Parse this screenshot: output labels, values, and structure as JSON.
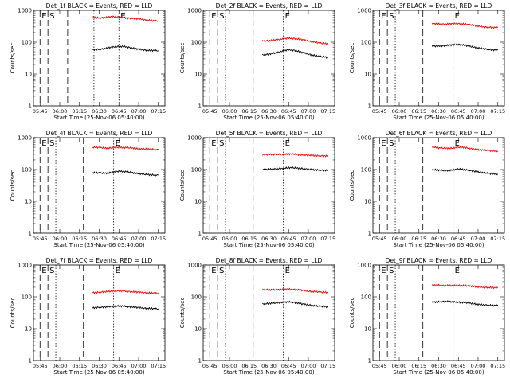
{
  "chart_data": [
    {
      "type": "line",
      "title": "Det_1f BLACK = Events, RED = LLD",
      "xlabel": "Start Time (25-Nov-06 05:40:00)",
      "ylabel": "Counts/sec",
      "y_scale": "log",
      "ylim": [
        1,
        1000
      ],
      "x_ticks": [
        "05:45",
        "06:00",
        "06:15",
        "06:30",
        "06:45",
        "07:00",
        "07:15"
      ],
      "y_ticks": [
        "1",
        "10",
        "100",
        "1000"
      ],
      "markers": [
        {
          "label": "E",
          "style": "dashed"
        },
        {
          "label": "S",
          "style": "dashed"
        },
        {
          "label": "",
          "style": "dashed"
        },
        {
          "label": "",
          "style": "dotted"
        },
        {
          "label": "E",
          "style": "dotted"
        }
      ],
      "series": [
        {
          "name": "RED = LLD",
          "color": "#ff0000",
          "x": [
            "06:25",
            "06:30",
            "06:35",
            "06:40",
            "06:45",
            "06:50",
            "06:55",
            "07:00",
            "07:05",
            "07:10",
            "07:15"
          ],
          "values": [
            620,
            580,
            600,
            640,
            620,
            580,
            560,
            540,
            500,
            480,
            460
          ]
        },
        {
          "name": "BLACK = Events",
          "color": "#000000",
          "x": [
            "06:25",
            "06:30",
            "06:35",
            "06:40",
            "06:45",
            "06:50",
            "06:55",
            "07:00",
            "07:05",
            "07:10",
            "07:15"
          ],
          "values": [
            58,
            60,
            64,
            70,
            74,
            72,
            66,
            60,
            56,
            55,
            54
          ]
        }
      ]
    },
    {
      "type": "line",
      "title": "Det_2f BLACK = Events, RED = LLD",
      "xlabel": "Start Time (25-Nov-06 05:40:00)",
      "ylabel": "Counts/sec",
      "y_scale": "log",
      "ylim": [
        1,
        1000
      ],
      "x_ticks": [
        "05:45",
        "06:00",
        "06:15",
        "06:30",
        "06:45",
        "07:00",
        "07:15"
      ],
      "y_ticks": [
        "1",
        "10",
        "100",
        "1000"
      ],
      "markers": [
        {
          "label": "E",
          "style": "dashed"
        },
        {
          "label": "S",
          "style": "dashed"
        },
        {
          "label": "",
          "style": "dotted"
        },
        {
          "label": "",
          "style": "dashed"
        },
        {
          "label": "E",
          "style": "dotted"
        }
      ],
      "series": [
        {
          "name": "RED = LLD",
          "color": "#ff0000",
          "x": [
            "06:25",
            "06:30",
            "06:35",
            "06:40",
            "06:45",
            "06:50",
            "06:55",
            "07:00",
            "07:05",
            "07:10",
            "07:15"
          ],
          "values": [
            110,
            112,
            118,
            125,
            135,
            130,
            120,
            110,
            100,
            92,
            90
          ]
        },
        {
          "name": "BLACK = Events",
          "color": "#000000",
          "x": [
            "06:25",
            "06:30",
            "06:35",
            "06:40",
            "06:45",
            "06:50",
            "06:55",
            "07:00",
            "07:05",
            "07:10",
            "07:15"
          ],
          "values": [
            40,
            42,
            46,
            52,
            58,
            55,
            48,
            42,
            38,
            35,
            33
          ]
        }
      ]
    },
    {
      "type": "line",
      "title": "Det_3f BLACK = Events, RED = LLD",
      "xlabel": "Start Time (25-Nov-06 05:40:00)",
      "ylabel": "Counts/sec",
      "y_scale": "log",
      "ylim": [
        1,
        1000
      ],
      "x_ticks": [
        "05:45",
        "06:00",
        "06:15",
        "06:30",
        "06:45",
        "07:00",
        "07:15"
      ],
      "y_ticks": [
        "1",
        "10",
        "100",
        "1000"
      ],
      "markers": [
        {
          "label": "E",
          "style": "dashed"
        },
        {
          "label": "S",
          "style": "dashed"
        },
        {
          "label": "",
          "style": "dotted"
        },
        {
          "label": "",
          "style": "dashed"
        },
        {
          "label": "E",
          "style": "dotted"
        }
      ],
      "series": [
        {
          "name": "RED = LLD",
          "color": "#ff0000",
          "x": [
            "06:25",
            "06:30",
            "06:35",
            "06:40",
            "06:45",
            "06:50",
            "06:55",
            "07:00",
            "07:05",
            "07:10",
            "07:15"
          ],
          "values": [
            380,
            375,
            370,
            380,
            385,
            370,
            345,
            320,
            300,
            290,
            285
          ]
        },
        {
          "name": "BLACK = Events",
          "color": "#000000",
          "x": [
            "06:25",
            "06:30",
            "06:35",
            "06:40",
            "06:45",
            "06:50",
            "06:55",
            "07:00",
            "07:05",
            "07:10",
            "07:15"
          ],
          "values": [
            75,
            76,
            78,
            82,
            86,
            80,
            72,
            66,
            62,
            58,
            56
          ]
        }
      ]
    },
    {
      "type": "line",
      "title": "Det_4f BLACK = Events, RED = LLD",
      "xlabel": "Start Time (25-Nov-06 05:40:00)",
      "ylabel": "Counts/sec",
      "y_scale": "log",
      "ylim": [
        1,
        1000
      ],
      "x_ticks": [
        "05:45",
        "06:00",
        "06:15",
        "06:30",
        "06:45",
        "07:00",
        "07:15"
      ],
      "y_ticks": [
        "1",
        "10",
        "100",
        "1000"
      ],
      "markers": [
        {
          "label": "E",
          "style": "dashed"
        },
        {
          "label": "S",
          "style": "dashed"
        },
        {
          "label": "",
          "style": "dotted"
        },
        {
          "label": "",
          "style": "dashed"
        },
        {
          "label": "E",
          "style": "dotted"
        }
      ],
      "series": [
        {
          "name": "RED = LLD",
          "color": "#ff0000",
          "x": [
            "06:25",
            "06:30",
            "06:35",
            "06:40",
            "06:45",
            "06:50",
            "06:55",
            "07:00",
            "07:05",
            "07:10",
            "07:15"
          ],
          "values": [
            500,
            490,
            470,
            480,
            500,
            490,
            470,
            450,
            440,
            430,
            420
          ]
        },
        {
          "name": "BLACK = Events",
          "color": "#000000",
          "x": [
            "06:25",
            "06:30",
            "06:35",
            "06:40",
            "06:45",
            "06:50",
            "06:55",
            "07:00",
            "07:05",
            "07:10",
            "07:15"
          ],
          "values": [
            80,
            78,
            76,
            82,
            88,
            86,
            80,
            74,
            70,
            68,
            66
          ]
        }
      ]
    },
    {
      "type": "line",
      "title": "Det_5f BLACK = Events, RED = LLD",
      "xlabel": "Start Time (25-Nov-06 05:40:00)",
      "ylabel": "Counts/sec",
      "y_scale": "log",
      "ylim": [
        1,
        1000
      ],
      "x_ticks": [
        "05:45",
        "06:00",
        "06:15",
        "06:30",
        "06:45",
        "07:00",
        "07:15"
      ],
      "y_ticks": [
        "1",
        "10",
        "100",
        "1000"
      ],
      "markers": [
        {
          "label": "E",
          "style": "dashed"
        },
        {
          "label": "S",
          "style": "dashed"
        },
        {
          "label": "",
          "style": "dotted"
        },
        {
          "label": "",
          "style": "dashed"
        },
        {
          "label": "E",
          "style": "dotted"
        }
      ],
      "series": [
        {
          "name": "RED = LLD",
          "color": "#ff0000",
          "x": [
            "06:25",
            "06:30",
            "06:35",
            "06:40",
            "06:45",
            "06:50",
            "06:55",
            "07:00",
            "07:05",
            "07:10",
            "07:15"
          ],
          "values": [
            290,
            295,
            300,
            300,
            305,
            300,
            290,
            280,
            275,
            270,
            265
          ]
        },
        {
          "name": "BLACK = Events",
          "color": "#000000",
          "x": [
            "06:25",
            "06:30",
            "06:35",
            "06:40",
            "06:45",
            "06:50",
            "06:55",
            "07:00",
            "07:05",
            "07:10",
            "07:15"
          ],
          "values": [
            100,
            102,
            105,
            108,
            115,
            112,
            108,
            102,
            98,
            96,
            94
          ]
        }
      ]
    },
    {
      "type": "line",
      "title": "Det_6f BLACK = Events, RED = LLD",
      "xlabel": "Start Time (25-Nov-06 05:40:00)",
      "ylabel": "Counts/sec",
      "y_scale": "log",
      "ylim": [
        1,
        1000
      ],
      "x_ticks": [
        "05:45",
        "06:00",
        "06:15",
        "06:30",
        "06:45",
        "07:00",
        "07:15"
      ],
      "y_ticks": [
        "1",
        "10",
        "100",
        "1000"
      ],
      "markers": [
        {
          "label": "E",
          "style": "dashed"
        },
        {
          "label": "S",
          "style": "dashed"
        },
        {
          "label": "",
          "style": "dotted"
        },
        {
          "label": "",
          "style": "dashed"
        },
        {
          "label": "E",
          "style": "dotted"
        }
      ],
      "series": [
        {
          "name": "RED = LLD",
          "color": "#ff0000",
          "x": [
            "06:25",
            "06:30",
            "06:35",
            "06:40",
            "06:45",
            "06:50",
            "06:55",
            "07:00",
            "07:05",
            "07:10",
            "07:15"
          ],
          "values": [
            520,
            480,
            460,
            470,
            500,
            490,
            450,
            420,
            400,
            390,
            380
          ]
        },
        {
          "name": "BLACK = Events",
          "color": "#000000",
          "x": [
            "06:25",
            "06:30",
            "06:35",
            "06:40",
            "06:45",
            "06:50",
            "06:55",
            "07:00",
            "07:05",
            "07:10",
            "07:15"
          ],
          "values": [
            100,
            96,
            92,
            96,
            104,
            100,
            92,
            84,
            78,
            74,
            72
          ]
        }
      ]
    },
    {
      "type": "line",
      "title": "Det_7f BLACK = Events, RED = LLD",
      "xlabel": "Start Time (25-Nov-06 05:40:00)",
      "ylabel": "Counts/sec",
      "y_scale": "log",
      "ylim": [
        1,
        1000
      ],
      "x_ticks": [
        "05:45",
        "06:00",
        "06:15",
        "06:30",
        "06:45",
        "07:00",
        "07:15"
      ],
      "y_ticks": [
        "1",
        "10",
        "100",
        "1000"
      ],
      "markers": [
        {
          "label": "E",
          "style": "dashed"
        },
        {
          "label": "S",
          "style": "dashed"
        },
        {
          "label": "",
          "style": "dotted"
        },
        {
          "label": "",
          "style": "dashed"
        },
        {
          "label": "E",
          "style": "dotted"
        }
      ],
      "series": [
        {
          "name": "RED = LLD",
          "color": "#ff0000",
          "x": [
            "06:25",
            "06:30",
            "06:35",
            "06:40",
            "06:45",
            "06:50",
            "06:55",
            "07:00",
            "07:05",
            "07:10",
            "07:15"
          ],
          "values": [
            135,
            140,
            145,
            150,
            155,
            150,
            145,
            140,
            135,
            132,
            130
          ]
        },
        {
          "name": "BLACK = Events",
          "color": "#000000",
          "x": [
            "06:25",
            "06:30",
            "06:35",
            "06:40",
            "06:45",
            "06:50",
            "06:55",
            "07:00",
            "07:05",
            "07:10",
            "07:15"
          ],
          "values": [
            45,
            47,
            48,
            50,
            52,
            50,
            48,
            46,
            44,
            43,
            42
          ]
        }
      ]
    },
    {
      "type": "line",
      "title": "Det_8f BLACK = Events, RED = LLD",
      "xlabel": "Start Time (25-Nov-06 05:40:00)",
      "ylabel": "Counts/sec",
      "y_scale": "log",
      "ylim": [
        1,
        1000
      ],
      "x_ticks": [
        "05:45",
        "06:00",
        "06:15",
        "06:30",
        "06:45",
        "07:00",
        "07:15"
      ],
      "y_ticks": [
        "1",
        "10",
        "100",
        "1000"
      ],
      "markers": [
        {
          "label": "E",
          "style": "dashed"
        },
        {
          "label": "S",
          "style": "dashed"
        },
        {
          "label": "",
          "style": "dotted"
        },
        {
          "label": "",
          "style": "dashed"
        },
        {
          "label": "E",
          "style": "dotted"
        }
      ],
      "series": [
        {
          "name": "RED = LLD",
          "color": "#ff0000",
          "x": [
            "06:25",
            "06:30",
            "06:35",
            "06:40",
            "06:45",
            "06:50",
            "06:55",
            "07:00",
            "07:05",
            "07:10",
            "07:15"
          ],
          "values": [
            170,
            168,
            165,
            170,
            175,
            170,
            160,
            150,
            145,
            140,
            138
          ]
        },
        {
          "name": "BLACK = Events",
          "color": "#000000",
          "x": [
            "06:25",
            "06:30",
            "06:35",
            "06:40",
            "06:45",
            "06:50",
            "06:55",
            "07:00",
            "07:05",
            "07:10",
            "07:15"
          ],
          "values": [
            60,
            62,
            64,
            66,
            70,
            66,
            60,
            56,
            52,
            50,
            48
          ]
        }
      ]
    },
    {
      "type": "line",
      "title": "Det_9f BLACK = Events, RED = LLD",
      "xlabel": "Start Time (25-Nov-06 05:40:00)",
      "ylabel": "Counts/sec",
      "y_scale": "log",
      "ylim": [
        1,
        1000
      ],
      "x_ticks": [
        "05:45",
        "06:00",
        "06:15",
        "06:30",
        "06:45",
        "07:00",
        "07:15"
      ],
      "y_ticks": [
        "1",
        "10",
        "100",
        "1000"
      ],
      "markers": [
        {
          "label": "E",
          "style": "dashed"
        },
        {
          "label": "S",
          "style": "dashed"
        },
        {
          "label": "",
          "style": "dotted"
        },
        {
          "label": "",
          "style": "dashed"
        },
        {
          "label": "E",
          "style": "dotted"
        }
      ],
      "series": [
        {
          "name": "RED = LLD",
          "color": "#ff0000",
          "x": [
            "06:25",
            "06:30",
            "06:35",
            "06:40",
            "06:45",
            "06:50",
            "06:55",
            "07:00",
            "07:05",
            "07:10",
            "07:15"
          ],
          "values": [
            230,
            232,
            228,
            226,
            230,
            225,
            215,
            205,
            200,
            195,
            190
          ]
        },
        {
          "name": "BLACK = Events",
          "color": "#000000",
          "x": [
            "06:25",
            "06:30",
            "06:35",
            "06:40",
            "06:45",
            "06:50",
            "06:55",
            "07:00",
            "07:05",
            "07:10",
            "07:15"
          ],
          "values": [
            68,
            70,
            72,
            70,
            68,
            66,
            62,
            58,
            56,
            54,
            53
          ]
        }
      ]
    }
  ]
}
